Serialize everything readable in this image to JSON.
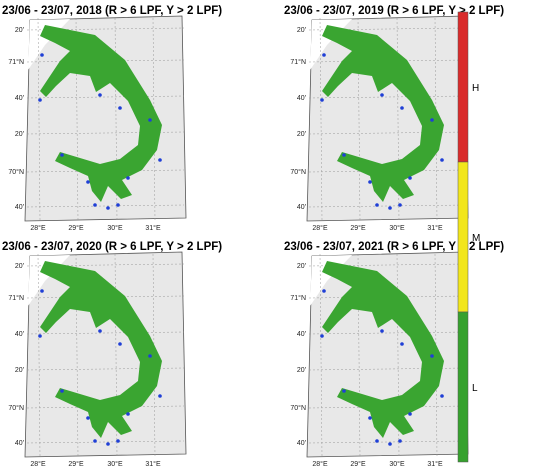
{
  "panels": [
    {
      "title": "23/06 - 23/07, 2018 (R > 6 LPF, Y > 2 LPF)"
    },
    {
      "title": "23/06 - 23/07, 2019 (R > 6 LPF, Y > 2 LPF)"
    },
    {
      "title": "23/06 - 23/07, 2020 (R > 6 LPF, Y > 2 LPF)"
    },
    {
      "title": "23/06 - 23/07, 2021 (R > 6 LPF, Y > 2 LPF)"
    }
  ],
  "lat_labels": [
    "20'",
    "71°N",
    "40'",
    "20'",
    "70°N",
    "40'"
  ],
  "lon_labels": [
    "28°E",
    "29°E",
    "30°E",
    "31°E"
  ],
  "colorbar": [
    {
      "label": "H",
      "color": "#d92b2b"
    },
    {
      "label": "M",
      "color": "#f2e61c"
    },
    {
      "label": "L",
      "color": "#36a12e"
    }
  ],
  "fjord_color": "#3aa531"
}
